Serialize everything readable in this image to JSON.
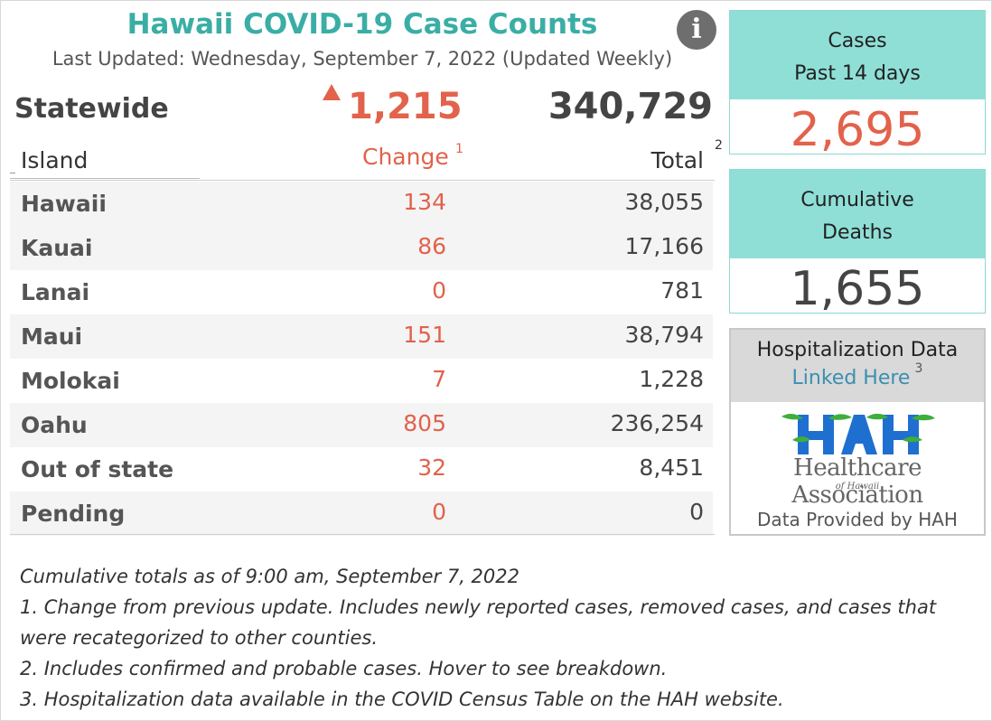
{
  "header": {
    "title": "Hawaii COVID-19 Case Counts",
    "updated": "Last Updated: Wednesday, September 7, 2022 (Updated Weekly)",
    "info_icon": "info-icon",
    "info_glyph": "i"
  },
  "statewide": {
    "label": "Statewide",
    "change": "1,215",
    "total": "340,729",
    "change_arrow": "up-arrow"
  },
  "columns": {
    "island": "Island",
    "change": "Change",
    "change_sup": "1",
    "total": "Total",
    "total_sup": "2"
  },
  "rows": [
    {
      "island": "Hawaii",
      "change": "134",
      "total": "38,055"
    },
    {
      "island": "Kauai",
      "change": "86",
      "total": "17,166"
    },
    {
      "island": "Lanai",
      "change": "0",
      "total": "781"
    },
    {
      "island": "Maui",
      "change": "151",
      "total": "38,794"
    },
    {
      "island": "Molokai",
      "change": "7",
      "total": "1,228"
    },
    {
      "island": "Oahu",
      "change": "805",
      "total": "236,254"
    },
    {
      "island": "Out of state",
      "change": "32",
      "total": "8,451"
    },
    {
      "island": "Pending",
      "change": "0",
      "total": "0"
    }
  ],
  "cases_card": {
    "line1": "Cases",
    "line2": "Past 14 days",
    "value": "2,695"
  },
  "deaths_card": {
    "line1": "Cumulative",
    "line2": "Deaths",
    "value": "1,655"
  },
  "hospitalization": {
    "title": "Hospitalization Data",
    "link": "Linked Here",
    "sup": "3",
    "logo_letters": "HAH",
    "logo_name": "Healthcare Association",
    "logo_sub": "of Hawaii",
    "credit": "Data Provided by HAH"
  },
  "notes": [
    "Cumulative totals as of 9:00 am, September 7, 2022",
    "1. Change from previous update. Includes newly reported cases, removed cases, and cases that were recategorized to other counties.",
    "2. Includes confirmed and probable cases. Hover to see breakdown.",
    "3. Hospitalization data available in the COVID Census Table on the HAH website."
  ],
  "colors": {
    "title": "#3aaea5",
    "change": "#e2624b",
    "card_head": "#8fdfd7",
    "link": "#3b8fb0",
    "logo_blue": "#1f6fd1",
    "logo_green": "#3fae3a"
  }
}
